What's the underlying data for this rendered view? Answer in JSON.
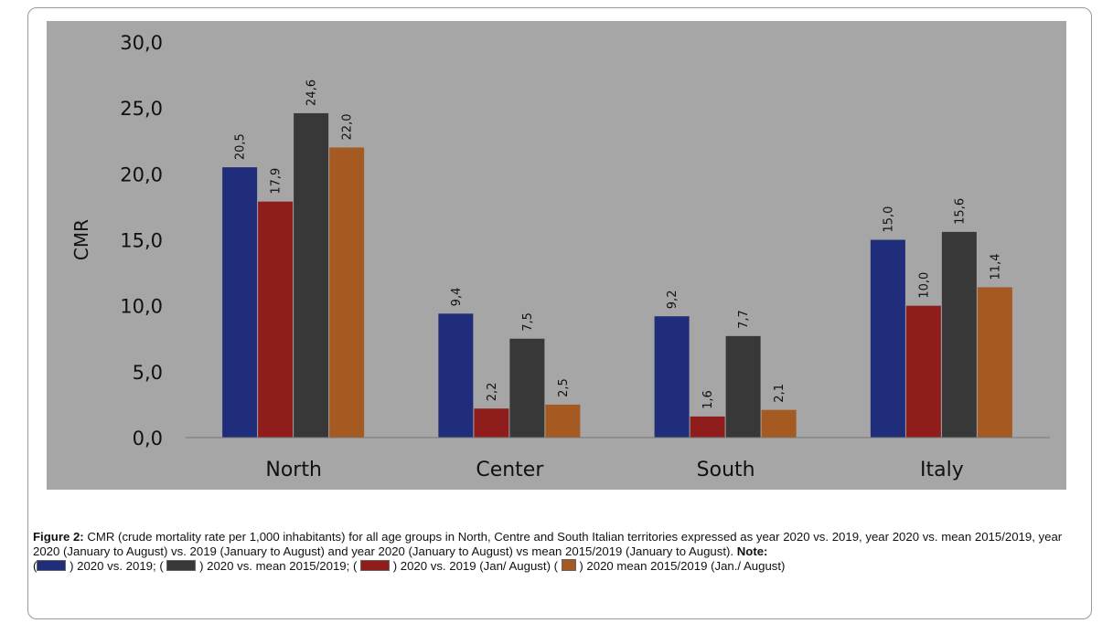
{
  "chart_data": {
    "type": "bar",
    "ylabel": "CMR",
    "xlabel": "",
    "ylim": [
      0,
      30
    ],
    "yticks": [
      "0,0",
      "5,0",
      "10,0",
      "15,0",
      "20,0",
      "25,0",
      "30,0"
    ],
    "grid": false,
    "categories": [
      "North",
      "Center",
      "South",
      "Italy"
    ],
    "series": [
      {
        "color": "#1f2d7a",
        "values": [
          20.5,
          9.4,
          9.2,
          15.0
        ],
        "labels": [
          "20,5",
          "9,4",
          "9,2",
          "15,0"
        ]
      },
      {
        "color": "#8e1d1b",
        "values": [
          17.9,
          2.2,
          1.6,
          10.0
        ],
        "labels": [
          "17,9",
          "2,2",
          "1,6",
          "10,0"
        ]
      },
      {
        "color": "#383838",
        "values": [
          24.6,
          7.5,
          7.7,
          15.6
        ],
        "labels": [
          "24,6",
          "7,5",
          "7,7",
          "15,6"
        ]
      },
      {
        "color": "#a55a22",
        "values": [
          22.0,
          2.5,
          2.1,
          11.4
        ],
        "labels": [
          "22,0",
          "2,5",
          "2,1",
          "11,4"
        ]
      }
    ],
    "background": "#a6a6a6"
  },
  "caption": {
    "figure_label": "Figure 2:",
    "text": " CMR (crude mortality rate per 1,000 inhabitants) for all age groups in North, Centre and South Italian territories expressed as year 2020 vs. 2019, year 2020 vs.  mean 2015/2019, year 2020 (January to August) vs. 2019 (January to August) and year 2020 (January to August) vs mean 2015/2019 (January to August).",
    "note_label": "Note:",
    "legend": [
      {
        "color": "#1f2d7a",
        "text": ") 2020 vs. 2019; ("
      },
      {
        "color": "#383838",
        "text": ") 2020 vs. mean 2015/2019; ("
      },
      {
        "color": "#8e1d1b",
        "text": ") 2020 vs. 2019 (Jan/ August) ("
      },
      {
        "color": "#a55a22",
        "text": ") 2020 mean 2015/2019 (Jan./ August)"
      }
    ],
    "open_paren": "("
  }
}
